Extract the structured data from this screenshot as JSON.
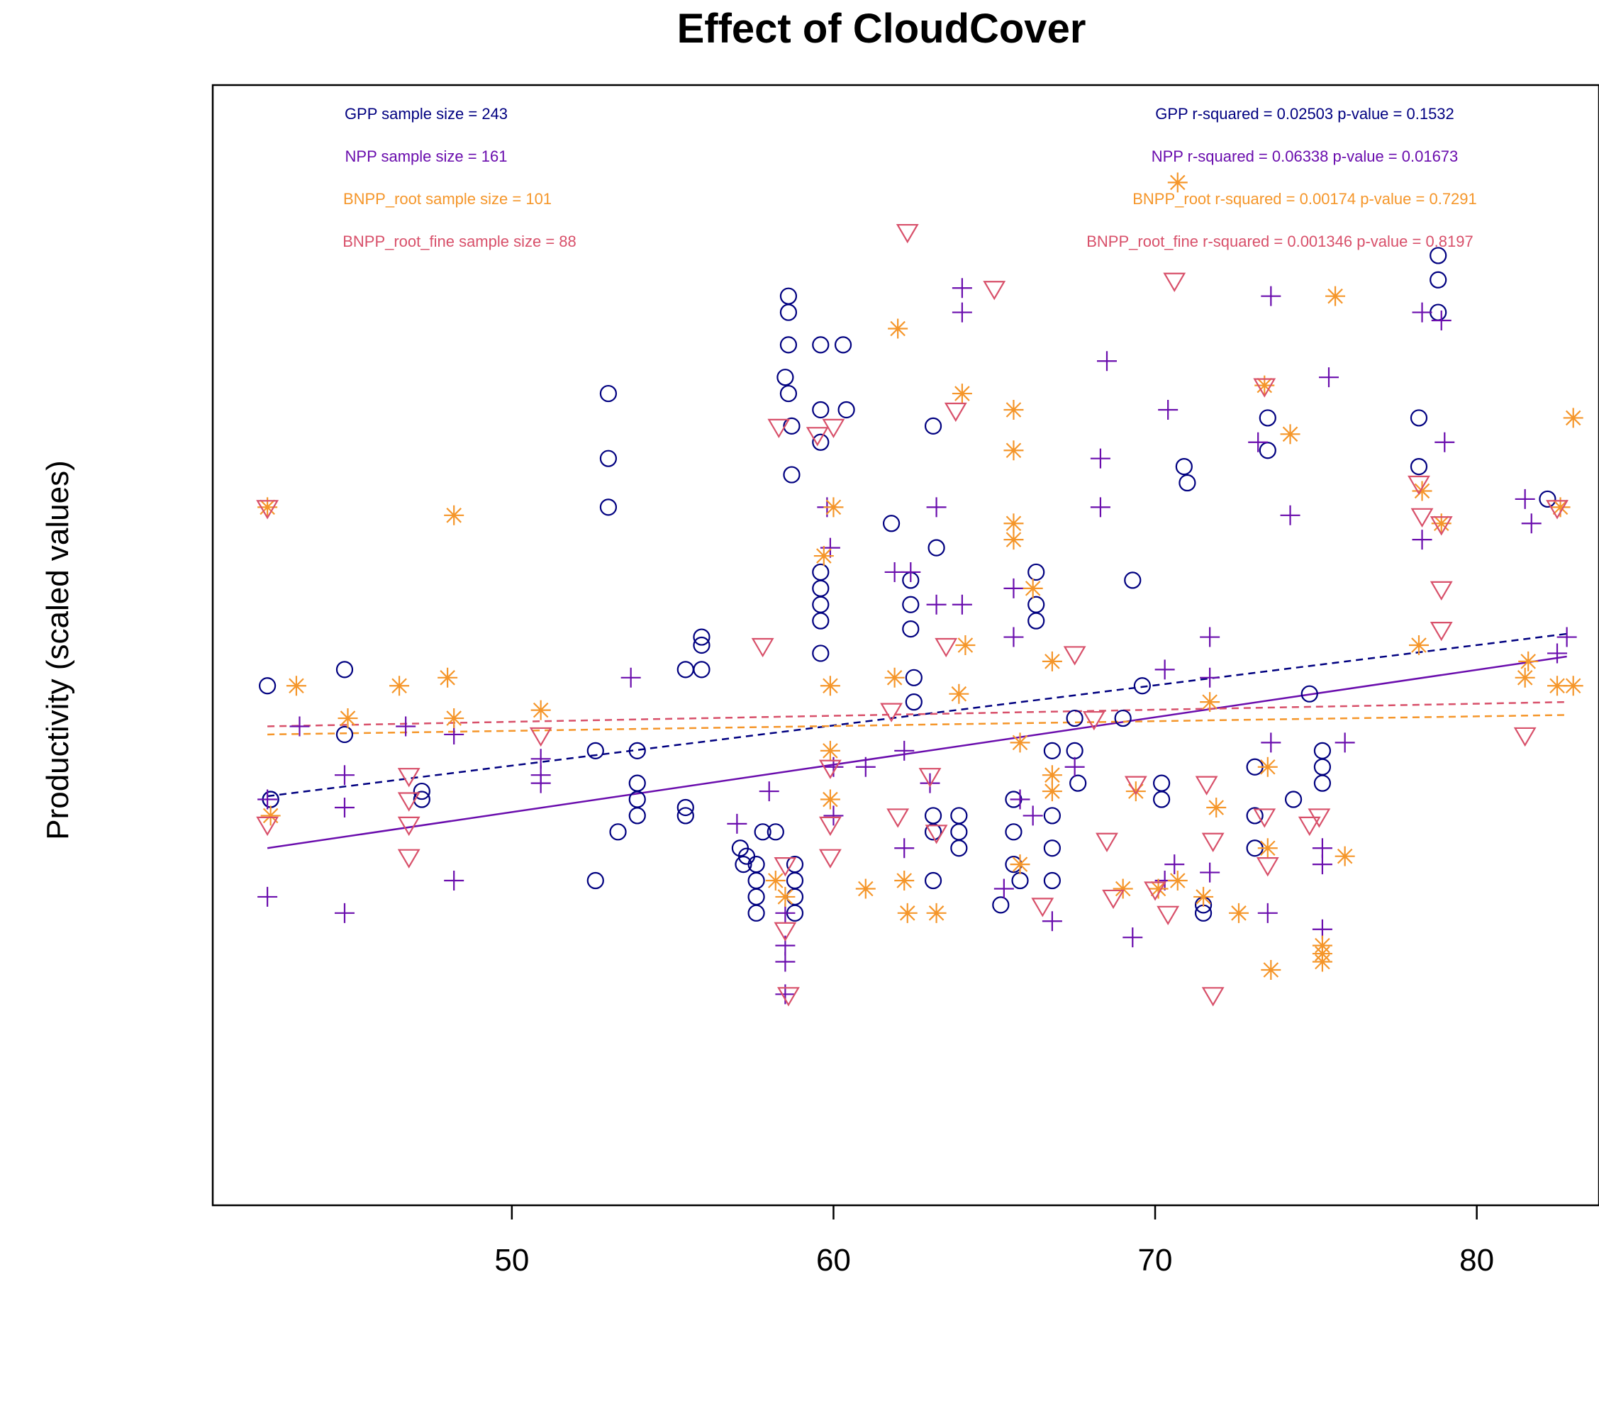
{
  "chart_data": {
    "type": "scatter",
    "title": "Effect of CloudCover",
    "xlabel": "",
    "ylabel": "Productivity (scaled values)",
    "xlim": [
      40.7,
      83.8
    ],
    "ylim": [
      -3.3,
      3.6
    ],
    "xticks": [
      50,
      60,
      70,
      80
    ],
    "xtick_labels": [
      "50",
      "60",
      "70",
      "80"
    ],
    "grid": false,
    "series": [
      {
        "name": "GPP",
        "color": "#000080",
        "symbol": "circle",
        "sample_label": "GPP sample size = 243",
        "stats_label": "GPP r-squared =  0.02503 p-value =  0.1532",
        "fit": {
          "x": [
            42.4,
            82.8
          ],
          "y": [
            -0.78,
            0.22
          ],
          "dashed": true
        },
        "points": [
          [
            42.4,
            -0.1
          ],
          [
            42.5,
            -0.8
          ],
          [
            42.5,
            -0.8
          ],
          [
            44.8,
            0.0
          ],
          [
            44.8,
            -0.4
          ],
          [
            47.2,
            -0.75
          ],
          [
            47.2,
            -0.8
          ],
          [
            52.6,
            -0.5
          ],
          [
            52.6,
            -1.3
          ],
          [
            53.0,
            1.7
          ],
          [
            53.0,
            1.3
          ],
          [
            53.0,
            1.0
          ],
          [
            53.3,
            -1.0
          ],
          [
            53.9,
            -0.5
          ],
          [
            53.9,
            -0.7
          ],
          [
            53.9,
            -0.8
          ],
          [
            53.9,
            -0.9
          ],
          [
            55.4,
            -0.9
          ],
          [
            55.4,
            -0.85
          ],
          [
            55.4,
            0.0
          ],
          [
            55.9,
            0.2
          ],
          [
            55.9,
            0.15
          ],
          [
            55.9,
            0.0
          ],
          [
            57.1,
            -1.1
          ],
          [
            57.2,
            -1.2
          ],
          [
            57.3,
            -1.15
          ],
          [
            57.6,
            -1.2
          ],
          [
            57.6,
            -1.3
          ],
          [
            57.6,
            -1.4
          ],
          [
            57.6,
            -1.5
          ],
          [
            57.8,
            -1.0
          ],
          [
            58.2,
            -1.0
          ],
          [
            58.5,
            1.8
          ],
          [
            58.6,
            2.3
          ],
          [
            58.6,
            2.2
          ],
          [
            58.6,
            2.0
          ],
          [
            58.6,
            1.7
          ],
          [
            58.7,
            1.5
          ],
          [
            58.7,
            1.2
          ],
          [
            58.8,
            -1.2
          ],
          [
            58.8,
            -1.3
          ],
          [
            58.8,
            -1.4
          ],
          [
            58.8,
            -1.5
          ],
          [
            59.6,
            2.0
          ],
          [
            59.6,
            1.6
          ],
          [
            59.6,
            1.4
          ],
          [
            59.6,
            0.6
          ],
          [
            59.6,
            0.5
          ],
          [
            59.6,
            0.4
          ],
          [
            59.6,
            0.3
          ],
          [
            59.6,
            0.1
          ],
          [
            60.3,
            2.0
          ],
          [
            60.4,
            1.6
          ],
          [
            61.8,
            0.9
          ],
          [
            62.4,
            0.55
          ],
          [
            62.4,
            0.4
          ],
          [
            62.4,
            0.25
          ],
          [
            62.5,
            -0.05
          ],
          [
            62.5,
            -0.2
          ],
          [
            63.1,
            1.5
          ],
          [
            63.2,
            0.75
          ],
          [
            63.1,
            -0.9
          ],
          [
            63.1,
            -1.0
          ],
          [
            63.1,
            -1.3
          ],
          [
            63.9,
            -0.9
          ],
          [
            63.9,
            -1.0
          ],
          [
            63.9,
            -1.1
          ],
          [
            65.2,
            -1.45
          ],
          [
            65.6,
            -0.8
          ],
          [
            65.6,
            -1.0
          ],
          [
            65.6,
            -1.2
          ],
          [
            65.8,
            -1.3
          ],
          [
            66.3,
            0.6
          ],
          [
            66.3,
            0.4
          ],
          [
            66.3,
            0.3
          ],
          [
            66.8,
            -0.5
          ],
          [
            66.8,
            -0.9
          ],
          [
            66.8,
            -1.1
          ],
          [
            66.8,
            -1.3
          ],
          [
            67.5,
            -0.3
          ],
          [
            67.5,
            -0.5
          ],
          [
            67.6,
            -0.7
          ],
          [
            69.3,
            0.55
          ],
          [
            69.0,
            -0.3
          ],
          [
            69.6,
            -0.1
          ],
          [
            70.2,
            -0.7
          ],
          [
            70.2,
            -0.8
          ],
          [
            70.9,
            1.25
          ],
          [
            71.0,
            1.15
          ],
          [
            71.5,
            -1.45
          ],
          [
            71.5,
            -1.5
          ],
          [
            73.1,
            -0.6
          ],
          [
            73.1,
            -0.9
          ],
          [
            73.1,
            -1.1
          ],
          [
            73.5,
            1.55
          ],
          [
            73.5,
            1.35
          ],
          [
            74.3,
            -0.8
          ],
          [
            74.8,
            -0.15
          ],
          [
            75.2,
            -0.5
          ],
          [
            75.2,
            -0.6
          ],
          [
            75.2,
            -0.7
          ],
          [
            78.2,
            1.55
          ],
          [
            78.2,
            1.25
          ],
          [
            78.8,
            2.55
          ],
          [
            78.8,
            2.4
          ],
          [
            78.8,
            2.2
          ],
          [
            82.2,
            1.05
          ]
        ]
      },
      {
        "name": "NPP",
        "color": "#6a0dad",
        "symbol": "plus",
        "sample_label": "NPP sample size = 161",
        "stats_label": "NPP r-squared =  0.06338 p-value =  0.01673",
        "fit": {
          "x": [
            42.4,
            82.8
          ],
          "y": [
            -1.1,
            0.08
          ],
          "dashed": false
        },
        "points": [
          [
            42.4,
            -0.8
          ],
          [
            42.4,
            -1.4
          ],
          [
            43.4,
            -0.35
          ],
          [
            44.8,
            -0.65
          ],
          [
            44.8,
            -0.85
          ],
          [
            44.8,
            -1.5
          ],
          [
            46.7,
            -0.35
          ],
          [
            48.2,
            -0.4
          ],
          [
            48.2,
            -1.3
          ],
          [
            50.9,
            -0.65
          ],
          [
            50.9,
            -0.7
          ],
          [
            50.9,
            -0.55
          ],
          [
            53.7,
            -0.05
          ],
          [
            57.0,
            -0.95
          ],
          [
            58.0,
            -0.75
          ],
          [
            58.5,
            -1.5
          ],
          [
            58.5,
            -1.7
          ],
          [
            58.5,
            -1.8
          ],
          [
            58.5,
            -2.0
          ],
          [
            59.8,
            1.0
          ],
          [
            59.9,
            0.75
          ],
          [
            60.0,
            -0.6
          ],
          [
            60.0,
            -0.9
          ],
          [
            61.0,
            -0.6
          ],
          [
            61.9,
            0.6
          ],
          [
            62.2,
            -1.1
          ],
          [
            62.2,
            -0.5
          ],
          [
            62.4,
            0.6
          ],
          [
            63.0,
            -0.7
          ],
          [
            63.2,
            0.4
          ],
          [
            63.2,
            1.0
          ],
          [
            64.0,
            0.4
          ],
          [
            64.0,
            2.2
          ],
          [
            64.0,
            2.35
          ],
          [
            65.3,
            -1.35
          ],
          [
            65.6,
            0.5
          ],
          [
            65.6,
            0.2
          ],
          [
            65.8,
            -0.8
          ],
          [
            66.2,
            -0.9
          ],
          [
            66.8,
            -1.55
          ],
          [
            67.5,
            -0.6
          ],
          [
            68.3,
            1.3
          ],
          [
            68.3,
            1.0
          ],
          [
            68.5,
            1.9
          ],
          [
            69.3,
            -1.65
          ],
          [
            70.3,
            -1.3
          ],
          [
            70.4,
            1.6
          ],
          [
            70.3,
            0.0
          ],
          [
            70.6,
            -1.2
          ],
          [
            71.7,
            0.2
          ],
          [
            71.7,
            -0.05
          ],
          [
            71.7,
            -1.25
          ],
          [
            73.2,
            1.4
          ],
          [
            73.5,
            -1.5
          ],
          [
            73.6,
            -0.45
          ],
          [
            73.6,
            2.3
          ],
          [
            74.2,
            0.95
          ],
          [
            75.2,
            -1.1
          ],
          [
            75.2,
            -1.2
          ],
          [
            75.2,
            -1.6
          ],
          [
            75.4,
            1.8
          ],
          [
            75.9,
            -0.45
          ],
          [
            78.3,
            2.2
          ],
          [
            78.3,
            0.8
          ],
          [
            78.9,
            2.15
          ],
          [
            79.0,
            1.4
          ],
          [
            81.5,
            1.05
          ],
          [
            81.7,
            0.9
          ],
          [
            82.5,
            0.1
          ],
          [
            82.8,
            0.2
          ]
        ]
      },
      {
        "name": "BNPP_root",
        "color": "#f5962a",
        "symbol": "asterisk",
        "sample_label": "BNPP_root sample size = 101",
        "stats_label": "BNPP_root r-squared =  0.00174 p-value =  0.7291",
        "fit": {
          "x": [
            42.4,
            82.8
          ],
          "y": [
            -0.4,
            -0.28
          ],
          "dashed": true
        },
        "points": [
          [
            42.4,
            1.0
          ],
          [
            42.5,
            -0.9
          ],
          [
            43.3,
            -0.1
          ],
          [
            44.9,
            -0.3
          ],
          [
            46.5,
            -0.1
          ],
          [
            48.0,
            -0.05
          ],
          [
            48.2,
            0.95
          ],
          [
            48.2,
            -0.3
          ],
          [
            50.9,
            -0.25
          ],
          [
            58.2,
            -1.3
          ],
          [
            58.5,
            -1.4
          ],
          [
            59.7,
            0.7
          ],
          [
            60.0,
            1.0
          ],
          [
            59.9,
            -0.1
          ],
          [
            59.9,
            -0.5
          ],
          [
            59.9,
            -0.8
          ],
          [
            61.0,
            -1.35
          ],
          [
            61.9,
            -0.05
          ],
          [
            62.0,
            2.1
          ],
          [
            62.2,
            -1.3
          ],
          [
            62.3,
            -1.5
          ],
          [
            63.2,
            -1.5
          ],
          [
            63.9,
            -0.15
          ],
          [
            64.0,
            1.7
          ],
          [
            64.1,
            0.15
          ],
          [
            65.6,
            1.6
          ],
          [
            65.6,
            1.35
          ],
          [
            65.6,
            0.8
          ],
          [
            65.6,
            0.9
          ],
          [
            65.8,
            -0.45
          ],
          [
            65.8,
            -1.2
          ],
          [
            66.2,
            0.5
          ],
          [
            66.8,
            -0.75
          ],
          [
            66.8,
            0.05
          ],
          [
            66.8,
            -0.65
          ],
          [
            69.0,
            -1.35
          ],
          [
            69.4,
            -0.75
          ],
          [
            70.1,
            -1.35
          ],
          [
            70.7,
            -1.3
          ],
          [
            70.7,
            3.0
          ],
          [
            71.5,
            -1.4
          ],
          [
            71.7,
            -0.2
          ],
          [
            71.9,
            -0.85
          ],
          [
            72.6,
            -1.5
          ],
          [
            73.4,
            1.75
          ],
          [
            73.5,
            -1.1
          ],
          [
            73.5,
            -0.6
          ],
          [
            73.6,
            -1.85
          ],
          [
            74.2,
            1.45
          ],
          [
            75.2,
            -1.7
          ],
          [
            75.2,
            -1.75
          ],
          [
            75.2,
            -1.8
          ],
          [
            75.6,
            2.3
          ],
          [
            75.9,
            -1.15
          ],
          [
            78.2,
            0.15
          ],
          [
            78.3,
            1.1
          ],
          [
            78.9,
            0.9
          ],
          [
            81.5,
            -0.05
          ],
          [
            81.6,
            0.05
          ],
          [
            82.5,
            -0.1
          ],
          [
            82.6,
            1.0
          ],
          [
            83.0,
            1.55
          ],
          [
            83.0,
            -0.1
          ]
        ]
      },
      {
        "name": "BNPP_root_fine",
        "color": "#d8506a",
        "symbol": "triangle-down",
        "sample_label": "BNPP_root_fine sample size = 88",
        "stats_label": "BNPP_root_fine r-squared =  0.001346 p-value =  0.8197",
        "fit": {
          "x": [
            42.4,
            82.8
          ],
          "y": [
            -0.35,
            -0.2
          ],
          "dashed": true
        },
        "points": [
          [
            42.4,
            1.0
          ],
          [
            42.4,
            -0.95
          ],
          [
            46.8,
            -0.65
          ],
          [
            46.8,
            -0.8
          ],
          [
            46.8,
            -0.95
          ],
          [
            46.8,
            -1.15
          ],
          [
            50.9,
            -0.4
          ],
          [
            57.8,
            0.15
          ],
          [
            58.3,
            1.5
          ],
          [
            58.5,
            -1.2
          ],
          [
            58.5,
            -1.6
          ],
          [
            58.6,
            -2.0
          ],
          [
            59.5,
            1.45
          ],
          [
            60.0,
            1.5
          ],
          [
            59.9,
            -0.6
          ],
          [
            59.9,
            -0.95
          ],
          [
            59.9,
            -1.15
          ],
          [
            61.8,
            -0.25
          ],
          [
            62.0,
            -0.9
          ],
          [
            62.3,
            2.7
          ],
          [
            63.0,
            -0.65
          ],
          [
            63.2,
            -1.0
          ],
          [
            63.5,
            0.15
          ],
          [
            63.8,
            1.6
          ],
          [
            65.0,
            2.35
          ],
          [
            66.5,
            -1.45
          ],
          [
            67.5,
            0.1
          ],
          [
            68.1,
            -0.3
          ],
          [
            68.5,
            -1.05
          ],
          [
            68.7,
            -1.4
          ],
          [
            69.4,
            -0.7
          ],
          [
            70.0,
            -1.35
          ],
          [
            70.4,
            -1.5
          ],
          [
            70.6,
            2.4
          ],
          [
            71.6,
            -0.7
          ],
          [
            71.8,
            -1.05
          ],
          [
            71.8,
            -2.0
          ],
          [
            73.4,
            1.75
          ],
          [
            73.4,
            -0.9
          ],
          [
            73.5,
            -1.2
          ],
          [
            74.8,
            -0.95
          ],
          [
            75.1,
            -0.9
          ],
          [
            78.2,
            1.15
          ],
          [
            78.3,
            0.95
          ],
          [
            78.9,
            0.9
          ],
          [
            78.9,
            0.5
          ],
          [
            78.9,
            0.25
          ],
          [
            81.5,
            -0.4
          ],
          [
            82.5,
            1.0
          ]
        ]
      }
    ]
  }
}
